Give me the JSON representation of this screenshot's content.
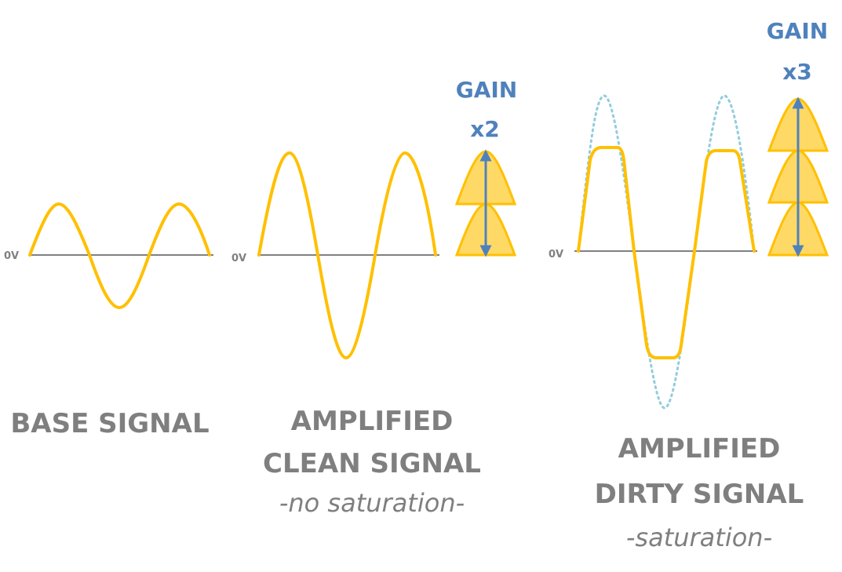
{
  "colors": {
    "signal": "#ffc000",
    "signal_fill": "#ffd966",
    "axis": "#808080",
    "gain": "#4f81bd",
    "ideal": "#92cddc",
    "text": "#7f7f7f"
  },
  "panels": {
    "base": {
      "zero_label": "0V",
      "caption": "BASE SIGNAL"
    },
    "clean": {
      "zero_label": "0V",
      "caption_line1": "AMPLIFIED",
      "caption_line2": "CLEAN SIGNAL",
      "subcaption": "-no saturation-",
      "gain_label": "GAIN",
      "gain_value": "x2"
    },
    "dirty": {
      "zero_label": "0V",
      "caption_line1": "AMPLIFIED",
      "caption_line2": "DIRTY SIGNAL",
      "subcaption": "-saturation-",
      "gain_label": "GAIN",
      "gain_value": "x3"
    }
  }
}
